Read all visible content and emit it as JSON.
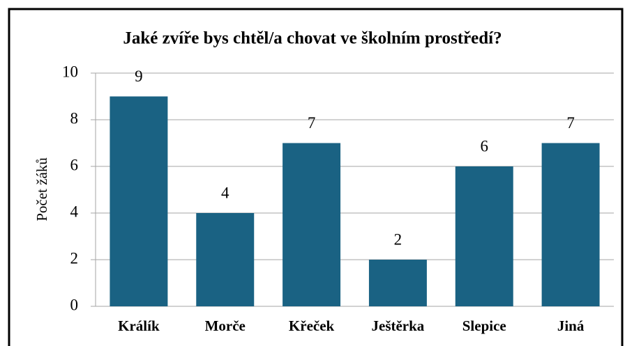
{
  "chart_data": {
    "type": "bar",
    "title": "Jaké zvíře bys chtěl/a chovat ve školním prostředí?",
    "y_label": "Počet žáků",
    "categories": [
      "Králík",
      "Morče",
      "Křeček",
      "Ještěrka",
      "Slepice",
      "Jiná"
    ],
    "values": [
      9,
      4,
      7,
      2,
      6,
      7
    ],
    "color": "#1a6283",
    "ylim": [
      0,
      10
    ],
    "yticks": [
      0,
      2,
      4,
      6,
      8,
      10
    ],
    "grid": true
  }
}
